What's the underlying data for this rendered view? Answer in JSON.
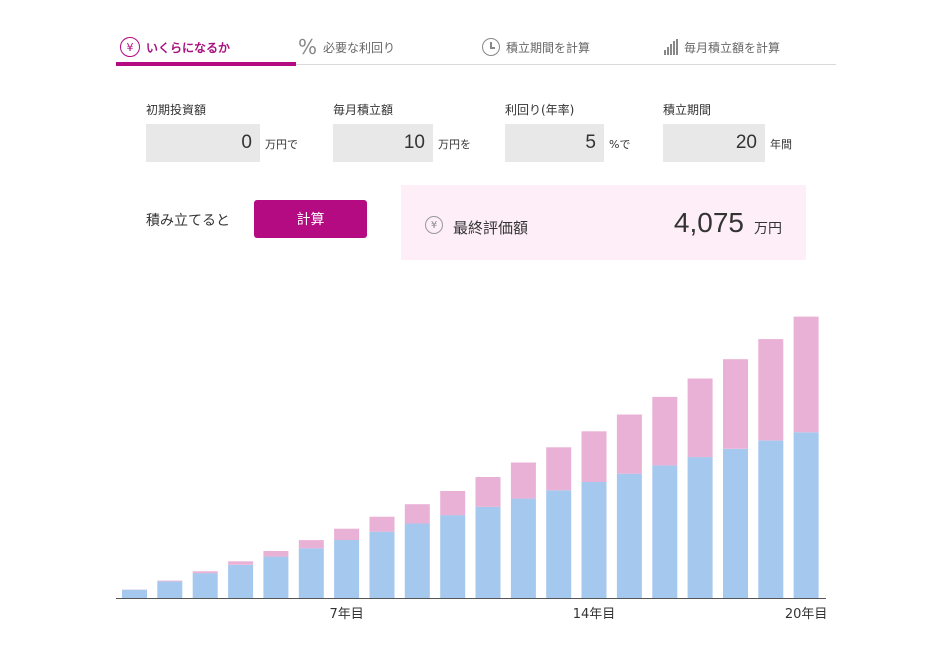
{
  "tabs": [
    {
      "label": "いくらになるか",
      "icon": "yen-icon",
      "active": true
    },
    {
      "label": "必要な利回り",
      "icon": "percent-icon",
      "active": false
    },
    {
      "label": "積立期間を計算",
      "icon": "clock-icon",
      "active": false
    },
    {
      "label": "毎月積立額を計算",
      "icon": "bar-chart-icon",
      "active": false
    }
  ],
  "inputs": {
    "initial": {
      "label": "初期投資額",
      "value": "0",
      "unit": "万円で"
    },
    "monthly": {
      "label": "毎月積立額",
      "value": "10",
      "unit": "万円を"
    },
    "rate": {
      "label": "利回り(年率)",
      "value": "5",
      "unit": "%で"
    },
    "period": {
      "label": "積立期間",
      "value": "20",
      "unit": "年間"
    }
  },
  "calc": {
    "lead": "積み立てると",
    "button": "計算"
  },
  "result": {
    "yen_symbol": "¥",
    "label": "最終評価額",
    "value": "4,075",
    "unit": "万円"
  },
  "colors": {
    "accent": "#b40a82",
    "principal": "#a5c8ee",
    "gain": "#e9b1d6",
    "result_bg": "#fdeef8",
    "input_bg": "#e8e8e8"
  },
  "chart_data": {
    "type": "bar",
    "stacked": true,
    "categories": [
      "1",
      "2",
      "3",
      "4",
      "5",
      "6",
      "7",
      "8",
      "9",
      "10",
      "11",
      "12",
      "13",
      "14",
      "15",
      "16",
      "17",
      "18",
      "19",
      "20"
    ],
    "series": [
      {
        "key": "principal",
        "values": [
          120,
          240,
          360,
          480,
          600,
          720,
          840,
          960,
          1080,
          1200,
          1320,
          1440,
          1560,
          1680,
          1800,
          1920,
          2040,
          2160,
          2280,
          2400
        ]
      },
      {
        "key": "gain",
        "values": [
          3,
          12,
          27,
          51,
          81,
          119,
          163,
          217,
          279,
          350,
          433,
          523,
          623,
          734,
          858,
          992,
          1139,
          1298,
          1469,
          1675
        ]
      }
    ],
    "x_tick_labels": [
      {
        "index": 6,
        "label": "7年目"
      },
      {
        "index": 13,
        "label": "14年目"
      },
      {
        "index": 19,
        "label": "20年目"
      }
    ],
    "ylim": [
      0,
      4200
    ],
    "grid": false,
    "legend": "none"
  }
}
